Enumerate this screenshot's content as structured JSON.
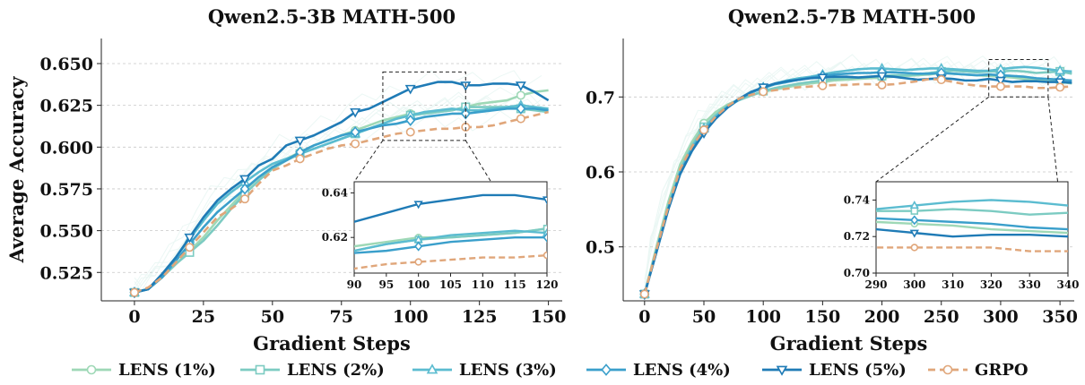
{
  "chart_data": [
    {
      "type": "line",
      "title": "Qwen2.5-3B MATH-500",
      "xlabel": "Gradient Steps",
      "ylabel": "Average Accuracy",
      "xlim": [
        -12,
        155
      ],
      "ylim": [
        0.508,
        0.665
      ],
      "xticks": [
        0,
        25,
        50,
        75,
        100,
        125,
        150
      ],
      "yticks": [
        0.525,
        0.55,
        0.575,
        0.6,
        0.625,
        0.65
      ],
      "ytick_labels": [
        "0.525",
        "0.550",
        "0.575",
        "0.600",
        "0.625",
        "0.650"
      ],
      "grid": "y",
      "x": [
        0,
        5,
        10,
        15,
        20,
        25,
        30,
        35,
        40,
        45,
        50,
        55,
        60,
        65,
        70,
        75,
        80,
        85,
        90,
        95,
        100,
        105,
        110,
        115,
        120,
        125,
        130,
        135,
        140,
        145,
        150
      ],
      "series": [
        {
          "name": "LENS (1%)",
          "values": [
            0.513,
            0.515,
            0.522,
            0.53,
            0.538,
            0.546,
            0.556,
            0.565,
            0.574,
            0.582,
            0.588,
            0.593,
            0.597,
            0.601,
            0.604,
            0.607,
            0.61,
            0.613,
            0.616,
            0.618,
            0.62,
            0.62,
            0.621,
            0.622,
            0.624,
            0.626,
            0.627,
            0.628,
            0.631,
            0.633,
            0.634
          ]
        },
        {
          "name": "LENS (2%)",
          "values": [
            0.513,
            0.515,
            0.522,
            0.53,
            0.537,
            0.544,
            0.553,
            0.563,
            0.572,
            0.58,
            0.587,
            0.592,
            0.596,
            0.599,
            0.602,
            0.605,
            0.608,
            0.611,
            0.614,
            0.617,
            0.619,
            0.62,
            0.621,
            0.622,
            0.624,
            0.624,
            0.624,
            0.624,
            0.623,
            0.622,
            0.621
          ]
        },
        {
          "name": "LENS (3%)",
          "values": [
            0.513,
            0.515,
            0.524,
            0.534,
            0.545,
            0.556,
            0.566,
            0.573,
            0.579,
            0.585,
            0.59,
            0.593,
            0.596,
            0.599,
            0.602,
            0.605,
            0.608,
            0.611,
            0.614,
            0.617,
            0.619,
            0.621,
            0.622,
            0.623,
            0.622,
            0.622,
            0.623,
            0.624,
            0.625,
            0.624,
            0.623
          ]
        },
        {
          "name": "LENS (4%)",
          "values": [
            0.513,
            0.515,
            0.522,
            0.532,
            0.542,
            0.552,
            0.561,
            0.568,
            0.575,
            0.582,
            0.588,
            0.592,
            0.597,
            0.601,
            0.604,
            0.607,
            0.609,
            0.611,
            0.613,
            0.614,
            0.616,
            0.618,
            0.619,
            0.62,
            0.62,
            0.621,
            0.622,
            0.623,
            0.623,
            0.623,
            0.622
          ]
        },
        {
          "name": "LENS (5%)",
          "values": [
            0.513,
            0.515,
            0.524,
            0.534,
            0.546,
            0.558,
            0.568,
            0.575,
            0.581,
            0.589,
            0.593,
            0.601,
            0.604,
            0.607,
            0.611,
            0.615,
            0.621,
            0.623,
            0.627,
            0.631,
            0.635,
            0.637,
            0.639,
            0.639,
            0.637,
            0.637,
            0.638,
            0.638,
            0.637,
            0.633,
            0.628
          ]
        },
        {
          "name": "GRPO",
          "values": [
            0.513,
            0.516,
            0.522,
            0.531,
            0.54,
            0.549,
            0.558,
            0.563,
            0.569,
            0.578,
            0.586,
            0.589,
            0.593,
            0.596,
            0.599,
            0.601,
            0.602,
            0.604,
            0.606,
            0.608,
            0.609,
            0.61,
            0.611,
            0.611,
            0.612,
            0.612,
            0.613,
            0.615,
            0.617,
            0.619,
            0.621
          ]
        }
      ],
      "inset": {
        "xlim": [
          90,
          120
        ],
        "ylim": [
          0.604,
          0.645
        ],
        "xticks": [
          90,
          95,
          100,
          105,
          110,
          115,
          120
        ],
        "yticks": [
          0.62,
          0.64
        ],
        "ytick_labels": [
          "0.62",
          "0.64"
        ]
      }
    },
    {
      "type": "line",
      "title": "Qwen2.5-7B MATH-500",
      "xlabel": "Gradient Steps",
      "ylabel": "",
      "xlim": [
        -18,
        362
      ],
      "ylim": [
        0.428,
        0.778
      ],
      "xticks": [
        0,
        50,
        100,
        150,
        200,
        250,
        300,
        350
      ],
      "yticks": [
        0.5,
        0.6,
        0.7
      ],
      "ytick_labels": [
        "0.5",
        "0.6",
        "0.7"
      ],
      "grid": "y",
      "x": [
        0,
        10,
        20,
        30,
        40,
        50,
        60,
        70,
        80,
        90,
        100,
        110,
        120,
        130,
        140,
        150,
        160,
        170,
        180,
        190,
        200,
        210,
        220,
        230,
        240,
        250,
        260,
        270,
        280,
        290,
        300,
        310,
        320,
        330,
        340,
        350,
        360
      ],
      "series": [
        {
          "name": "LENS (1%)",
          "values": [
            0.437,
            0.5,
            0.56,
            0.61,
            0.64,
            0.665,
            0.68,
            0.69,
            0.697,
            0.702,
            0.707,
            0.71,
            0.713,
            0.716,
            0.718,
            0.72,
            0.722,
            0.723,
            0.724,
            0.725,
            0.726,
            0.727,
            0.728,
            0.729,
            0.73,
            0.732,
            0.731,
            0.73,
            0.729,
            0.728,
            0.727,
            0.726,
            0.724,
            0.723,
            0.722,
            0.72,
            0.718
          ]
        },
        {
          "name": "LENS (2%)",
          "values": [
            0.437,
            0.496,
            0.555,
            0.603,
            0.635,
            0.66,
            0.676,
            0.688,
            0.696,
            0.702,
            0.708,
            0.712,
            0.715,
            0.718,
            0.72,
            0.722,
            0.724,
            0.725,
            0.726,
            0.727,
            0.728,
            0.729,
            0.729,
            0.73,
            0.732,
            0.734,
            0.735,
            0.734,
            0.733,
            0.734,
            0.734,
            0.735,
            0.734,
            0.732,
            0.733,
            0.734,
            0.731
          ]
        },
        {
          "name": "LENS (3%)",
          "values": [
            0.437,
            0.494,
            0.552,
            0.6,
            0.632,
            0.658,
            0.674,
            0.688,
            0.698,
            0.706,
            0.713,
            0.718,
            0.722,
            0.725,
            0.727,
            0.73,
            0.733,
            0.735,
            0.737,
            0.738,
            0.738,
            0.737,
            0.736,
            0.737,
            0.738,
            0.738,
            0.737,
            0.736,
            0.735,
            0.735,
            0.737,
            0.739,
            0.74,
            0.739,
            0.737,
            0.735,
            0.734
          ]
        },
        {
          "name": "LENS (4%)",
          "values": [
            0.437,
            0.493,
            0.55,
            0.598,
            0.63,
            0.654,
            0.672,
            0.686,
            0.697,
            0.706,
            0.712,
            0.717,
            0.72,
            0.723,
            0.726,
            0.728,
            0.73,
            0.731,
            0.732,
            0.732,
            0.733,
            0.733,
            0.732,
            0.731,
            0.731,
            0.732,
            0.731,
            0.73,
            0.729,
            0.73,
            0.729,
            0.728,
            0.727,
            0.725,
            0.724,
            0.723,
            0.722
          ]
        },
        {
          "name": "LENS (5%)",
          "values": [
            0.437,
            0.493,
            0.55,
            0.597,
            0.628,
            0.652,
            0.671,
            0.686,
            0.698,
            0.707,
            0.713,
            0.718,
            0.721,
            0.723,
            0.725,
            0.726,
            0.727,
            0.727,
            0.726,
            0.727,
            0.728,
            0.727,
            0.725,
            0.723,
            0.724,
            0.725,
            0.724,
            0.722,
            0.722,
            0.724,
            0.722,
            0.72,
            0.721,
            0.721,
            0.72,
            0.72,
            0.719
          ]
        },
        {
          "name": "GRPO",
          "values": [
            0.437,
            0.496,
            0.554,
            0.604,
            0.634,
            0.656,
            0.674,
            0.688,
            0.698,
            0.703,
            0.707,
            0.709,
            0.711,
            0.713,
            0.714,
            0.715,
            0.716,
            0.716,
            0.717,
            0.717,
            0.716,
            0.717,
            0.719,
            0.721,
            0.724,
            0.723,
            0.72,
            0.717,
            0.715,
            0.714,
            0.714,
            0.714,
            0.714,
            0.712,
            0.712,
            0.713,
            0.714
          ]
        }
      ],
      "inset": {
        "xlim": [
          290,
          340
        ],
        "ylim": [
          0.7,
          0.75
        ],
        "xticks": [
          290,
          300,
          310,
          320,
          330,
          340
        ],
        "yticks": [
          0.7,
          0.72,
          0.74
        ],
        "ytick_labels": [
          "0.70",
          "0.72",
          "0.74"
        ]
      }
    }
  ],
  "legend": {
    "position": "bottom",
    "entries": [
      {
        "name": "LENS (1%)",
        "color": "#9ED8B6",
        "marker": "circle",
        "dash": false
      },
      {
        "name": "LENS (2%)",
        "color": "#7CCBC2",
        "marker": "square",
        "dash": false
      },
      {
        "name": "LENS (3%)",
        "color": "#5BBCD0",
        "marker": "triangle-up",
        "dash": false
      },
      {
        "name": "LENS (4%)",
        "color": "#3A9FCB",
        "marker": "diamond",
        "dash": false
      },
      {
        "name": "LENS (5%)",
        "color": "#1F7BB6",
        "marker": "triangle-down",
        "dash": false
      },
      {
        "name": "GRPO",
        "color": "#E0A67A",
        "marker": "circle",
        "dash": true
      }
    ]
  }
}
